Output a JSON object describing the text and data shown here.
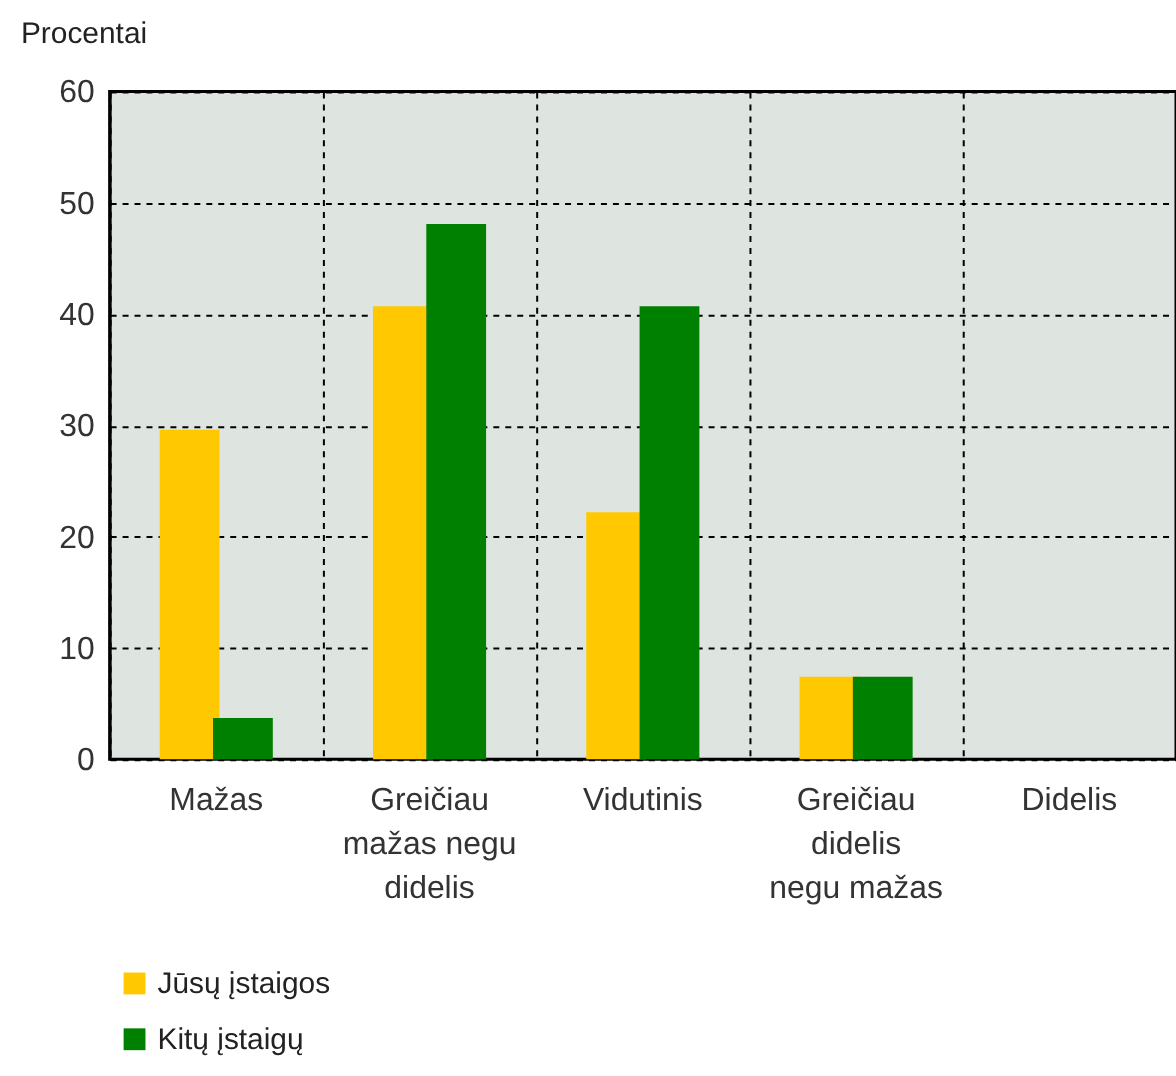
{
  "chart_data": {
    "type": "bar",
    "ylabel": "Procentai",
    "categories": [
      "Mažas",
      "Greičiau mažas negu didelis",
      "Vidutinis",
      "Greičiau didelis negu mažas",
      "Didelis"
    ],
    "series": [
      {
        "name": "Jūsų įstaigos",
        "color": "#ffc800",
        "values": [
          29.6,
          40.7,
          22.2,
          7.4,
          0
        ]
      },
      {
        "name": "Kitų įstaigų",
        "color": "#008000",
        "values": [
          3.7,
          48.1,
          40.7,
          7.4,
          0
        ]
      }
    ],
    "ylim": [
      0,
      60
    ],
    "yticks": [
      0,
      10,
      20,
      30,
      40,
      50,
      60
    ],
    "grid": true,
    "legend": "bottom left"
  }
}
